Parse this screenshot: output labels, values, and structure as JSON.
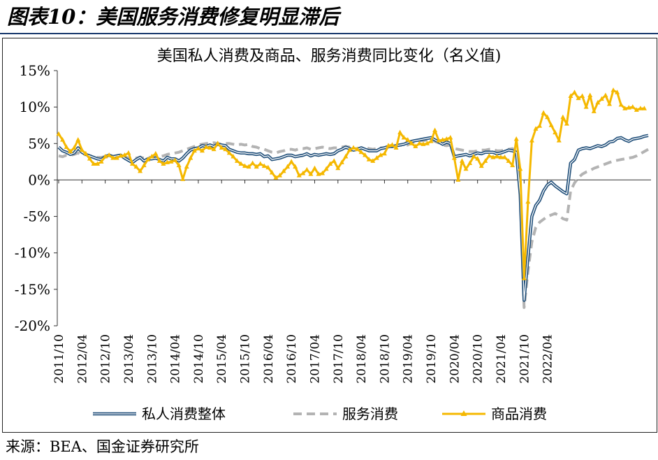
{
  "figure_title": "图表10：美国服务消费修复明显滞后",
  "source_text": "来源：BEA、国金证券研究所",
  "chart_data": {
    "type": "line",
    "title": "美国私人消费及商品、服务消费同比变化（名义值)",
    "xlabel": "",
    "ylabel": "",
    "ylim": [
      -20,
      15
    ],
    "y_tick_values": [
      -20,
      -15,
      -10,
      -5,
      0,
      5,
      10,
      15
    ],
    "y_tick_labels": [
      "-20%",
      "-15%",
      "-10%",
      "-5%",
      "0%",
      "5%",
      "10%",
      "15%"
    ],
    "x_start": "2011-10",
    "x_labels": [
      "2011/10",
      "2012/04",
      "2012/10",
      "2013/04",
      "2013/10",
      "2014/04",
      "2014/10",
      "2015/04",
      "2015/10",
      "2016/04",
      "2016/10",
      "2017/04",
      "2017/10",
      "2018/04",
      "2018/10",
      "2019/04",
      "2019/10",
      "2020/04",
      "2020/10",
      "2021/04",
      "2021/10",
      "2022/04"
    ],
    "legend_position": "bottom",
    "grid": false,
    "colors": {
      "total": "#1f4e79",
      "services": "#b3b3b3",
      "goods": "#f5b800"
    },
    "series": [
      {
        "key": "total",
        "name": "私人消费整体",
        "style": "double-line",
        "values": [
          4.5,
          4.0,
          3.8,
          3.5,
          3.7,
          4.4,
          3.8,
          3.5,
          3.3,
          3.1,
          2.9,
          2.8,
          3.2,
          3.4,
          3.2,
          3.3,
          3.4,
          3.0,
          2.7,
          2.4,
          2.8,
          3.1,
          2.6,
          2.9,
          2.9,
          3.0,
          2.8,
          2.6,
          3.1,
          2.9,
          2.9,
          2.6,
          3.0,
          3.6,
          4.1,
          4.3,
          4.4,
          4.7,
          4.6,
          4.8,
          4.6,
          4.9,
          4.8,
          4.7,
          4.2,
          4.0,
          3.8,
          3.7,
          3.7,
          3.6,
          3.6,
          3.5,
          3.6,
          3.2,
          3.3,
          2.8,
          2.9,
          3.0,
          3.2,
          3.4,
          3.4,
          3.2,
          3.3,
          3.4,
          3.6,
          3.3,
          3.5,
          3.4,
          3.5,
          3.6,
          3.5,
          3.6,
          4.0,
          4.2,
          4.5,
          4.3,
          4.1,
          4.2,
          4.4,
          4.2,
          4.0,
          4.0,
          4.0,
          4.3,
          4.4,
          4.6,
          4.6,
          4.7,
          4.8,
          4.9,
          5.1,
          5.3,
          5.4,
          5.5,
          5.6,
          5.7,
          5.8,
          5.5,
          5.2,
          4.9,
          5.2,
          5.0,
          3.2,
          3.3,
          3.4,
          3.5,
          3.3,
          3.5,
          3.7,
          3.6,
          3.8,
          3.8,
          3.8,
          3.6,
          3.7,
          3.9,
          4.1,
          4.0,
          3.8,
          -2.0,
          -16.5,
          -10.5,
          -5.0,
          -3.5,
          -2.8,
          -1.5,
          -0.7,
          -0.3,
          -0.8,
          -1.2,
          -1.6,
          -1.9,
          2.3,
          2.8,
          4.1,
          4.3,
          4.4,
          4.3,
          4.5,
          4.7,
          4.6,
          4.8,
          5.2,
          5.3,
          5.7,
          5.8,
          5.5,
          5.3,
          5.6,
          5.7,
          5.8,
          6.0,
          6.1
        ]
      },
      {
        "key": "services",
        "name": "服务消费",
        "style": "dashed",
        "values": [
          3.3,
          3.2,
          3.4,
          3.4,
          3.5,
          3.7,
          3.4,
          3.5,
          3.3,
          3.2,
          3.1,
          3.1,
          3.2,
          3.3,
          3.2,
          3.3,
          3.4,
          3.2,
          3.0,
          2.9,
          3.0,
          3.1,
          3.0,
          3.1,
          3.1,
          3.2,
          3.2,
          3.3,
          3.5,
          3.6,
          3.7,
          3.8,
          4.0,
          4.2,
          4.4,
          4.6,
          4.8,
          4.9,
          5.0,
          5.0,
          5.1,
          5.0,
          4.9,
          5.0,
          5.0,
          4.9,
          4.8,
          4.9,
          4.8,
          4.9,
          4.6,
          4.5,
          4.3,
          4.2,
          4.0,
          3.8,
          3.7,
          3.9,
          4.0,
          4.2,
          4.2,
          4.1,
          4.3,
          4.3,
          4.4,
          4.2,
          4.3,
          4.4,
          4.5,
          4.4,
          4.3,
          4.4,
          4.4,
          4.5,
          4.6,
          4.5,
          4.3,
          4.3,
          4.4,
          4.5,
          4.3,
          4.2,
          4.3,
          4.4,
          4.4,
          4.5,
          4.6,
          4.7,
          4.8,
          4.7,
          4.8,
          5.1,
          5.2,
          5.4,
          5.4,
          5.5,
          5.6,
          5.3,
          5.1,
          4.8,
          4.7,
          4.8,
          4.3,
          4.2,
          4.1,
          4.0,
          3.9,
          3.9,
          4.0,
          4.1,
          4.1,
          4.2,
          4.2,
          4.0,
          4.0,
          4.1,
          4.2,
          4.3,
          4.0,
          -1.5,
          -17.5,
          -12.5,
          -8.5,
          -6.5,
          -5.8,
          -5.4,
          -5.0,
          -4.8,
          -4.6,
          -4.9,
          -5.3,
          -5.5,
          -1.5,
          -0.4,
          0.3,
          0.8,
          1.1,
          1.3,
          1.6,
          1.8,
          2.0,
          2.2,
          2.4,
          2.6,
          2.7,
          2.8,
          2.9,
          3.0,
          3.1,
          3.3,
          3.6,
          3.9,
          4.2
        ]
      },
      {
        "key": "goods",
        "name": "商品消费",
        "style": "line-triangle",
        "values": [
          6.3,
          5.5,
          4.5,
          3.9,
          4.4,
          5.5,
          4.1,
          3.6,
          2.9,
          2.2,
          2.2,
          2.5,
          3.2,
          3.4,
          3.0,
          3.0,
          3.3,
          3.4,
          3.7,
          2.2,
          1.8,
          1.2,
          2.0,
          2.8,
          3.2,
          3.6,
          2.6,
          2.2,
          2.4,
          2.5,
          2.7,
          2.0,
          0.1,
          1.8,
          3.0,
          4.0,
          4.3,
          4.0,
          4.5,
          4.4,
          4.2,
          5.0,
          4.4,
          4.2,
          3.7,
          3.2,
          2.6,
          2.2,
          1.9,
          1.8,
          2.3,
          1.8,
          2.2,
          1.9,
          1.7,
          1.0,
          0.3,
          0.6,
          1.2,
          1.8,
          2.5,
          1.8,
          0.6,
          0.9,
          1.4,
          0.8,
          1.6,
          0.8,
          0.9,
          1.5,
          2.2,
          2.6,
          1.6,
          2.4,
          3.2,
          4.1,
          4.4,
          4.2,
          3.8,
          3.4,
          2.8,
          2.6,
          3.0,
          3.4,
          3.6,
          4.7,
          4.8,
          4.4,
          6.5,
          5.8,
          5.5,
          5.0,
          4.6,
          5.0,
          4.9,
          5.0,
          5.3,
          6.8,
          5.4,
          5.5,
          5.6,
          5.8,
          3.0,
          0.0,
          2.6,
          1.5,
          2.3,
          3.2,
          2.9,
          1.9,
          2.6,
          3.3,
          3.1,
          3.2,
          3.1,
          3.1,
          2.6,
          2.0,
          5.6,
          1.5,
          -13.5,
          -3.0,
          5.4,
          7.0,
          7.4,
          9.2,
          8.6,
          7.5,
          6.5,
          5.4,
          8.6,
          7.7,
          11.5,
          12.0,
          11.2,
          11.5,
          10.0,
          11.6,
          9.4,
          10.6,
          11.1,
          11.6,
          10.4,
          12.3,
          12.0,
          10.3,
          9.8,
          9.9,
          10.0,
          9.6,
          9.8,
          9.8
        ]
      }
    ]
  }
}
